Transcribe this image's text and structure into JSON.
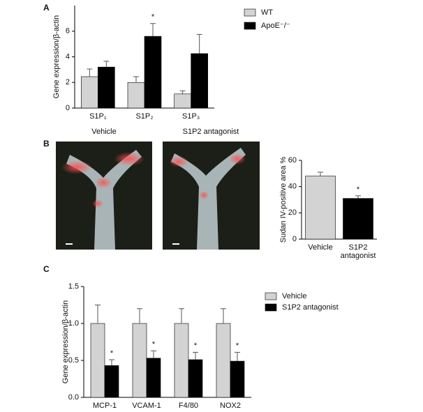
{
  "chart_data": [
    {
      "type": "bar",
      "panel": "A",
      "y_label": "Gene expression/β-actin",
      "categories": [
        "S1P₁",
        "S1P₂",
        "S1P₃"
      ],
      "series": [
        {
          "name": "WT",
          "color": "#d3d3d3",
          "values": [
            2.45,
            2.0,
            1.1
          ],
          "errors": [
            0.6,
            0.45,
            0.25
          ]
        },
        {
          "name": "ApoE⁻/⁻",
          "color": "#000000",
          "values": [
            3.2,
            5.6,
            4.25
          ],
          "errors": [
            0.45,
            1.0,
            1.5
          ]
        }
      ],
      "annotations": [
        {
          "text": "*",
          "x": "S1P₂",
          "series": "ApoE⁻/⁻"
        }
      ],
      "ylim": [
        0,
        8
      ],
      "yticks": [
        0,
        2,
        4,
        6
      ]
    },
    {
      "type": "bar",
      "y_label": "Sudan IV-positive area %",
      "categories": [
        "Vehicle",
        "S1P2 antagonist"
      ],
      "series": [
        {
          "color": [
            "#d3d3d3",
            "#000000"
          ],
          "values": [
            48,
            31
          ],
          "errors": [
            3,
            2
          ]
        }
      ],
      "annotations": [
        {
          "text": "*",
          "x": "S1P2 antagonist"
        }
      ],
      "ylim": [
        0,
        60
      ],
      "yticks": [
        0,
        20,
        40,
        60
      ]
    },
    {
      "type": "bar",
      "panel": "C",
      "y_label": "Gene expression/β-actin",
      "categories": [
        "MCP-1",
        "VCAM-1",
        "F4/80",
        "NOX2"
      ],
      "series": [
        {
          "name": "Vehicle",
          "color": "#d3d3d3",
          "values": [
            1.0,
            1.0,
            1.0,
            1.0
          ],
          "errors": [
            0.25,
            0.2,
            0.2,
            0.2
          ]
        },
        {
          "name": "S1P2 antagonist",
          "color": "#000000",
          "values": [
            0.43,
            0.53,
            0.51,
            0.49
          ],
          "errors": [
            0.08,
            0.1,
            0.1,
            0.12
          ]
        }
      ],
      "annotations": [
        {
          "text": "*",
          "x": "MCP-1",
          "series": "S1P2 antagonist"
        },
        {
          "text": "*",
          "x": "VCAM-1",
          "series": "S1P2 antagonist"
        },
        {
          "text": "*",
          "x": "F4/80",
          "series": "S1P2 antagonist"
        },
        {
          "text": "*",
          "x": "NOX2",
          "series": "S1P2 antagonist"
        }
      ],
      "ylim": [
        0,
        1.5
      ],
      "yticks": [
        {
          "value": 0,
          "label": "0.0"
        },
        0.5,
        {
          "value": 1,
          "label": "1.0"
        },
        1.5
      ]
    }
  ],
  "photos": {
    "panel": "B",
    "labels": [
      "Vehicle",
      "S1P2 antagonist"
    ]
  }
}
